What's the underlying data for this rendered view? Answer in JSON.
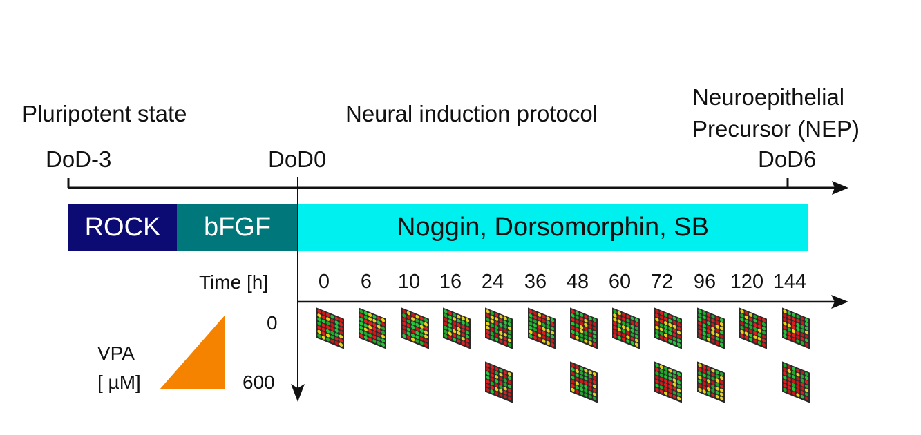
{
  "stages": {
    "pluripotent": "Pluripotent state",
    "neural": "Neural induction protocol",
    "nep_line1": "Neuroepithelial",
    "nep_line2": "Precursor (NEP)"
  },
  "timeline": {
    "start": "DoD-3",
    "mid": "DoD0",
    "end": "DoD6"
  },
  "treatments": {
    "rock": "ROCK",
    "bfgf": "bFGF",
    "neural_mix": "Noggin, Dorsomorphin, SB"
  },
  "colors": {
    "rock": "#0b0b73",
    "bfgf": "#00777a",
    "neural_mix": "#00f0f0",
    "vpa_triangle": "#f58300"
  },
  "time_axis": {
    "label": "Time [h]",
    "hours": [
      "0",
      "6",
      "10",
      "16",
      "24",
      "36",
      "48",
      "60",
      "72",
      "96",
      "120",
      "144"
    ]
  },
  "vpa": {
    "label_line1": "VPA",
    "label_line2": "[ µM]",
    "doses": [
      "0",
      "600"
    ]
  },
  "samples": {
    "dose_0": [
      "0",
      "6",
      "10",
      "16",
      "24",
      "36",
      "48",
      "60",
      "72",
      "96",
      "120",
      "144"
    ],
    "dose_600": [
      "24",
      "48",
      "72",
      "96",
      "144"
    ]
  }
}
